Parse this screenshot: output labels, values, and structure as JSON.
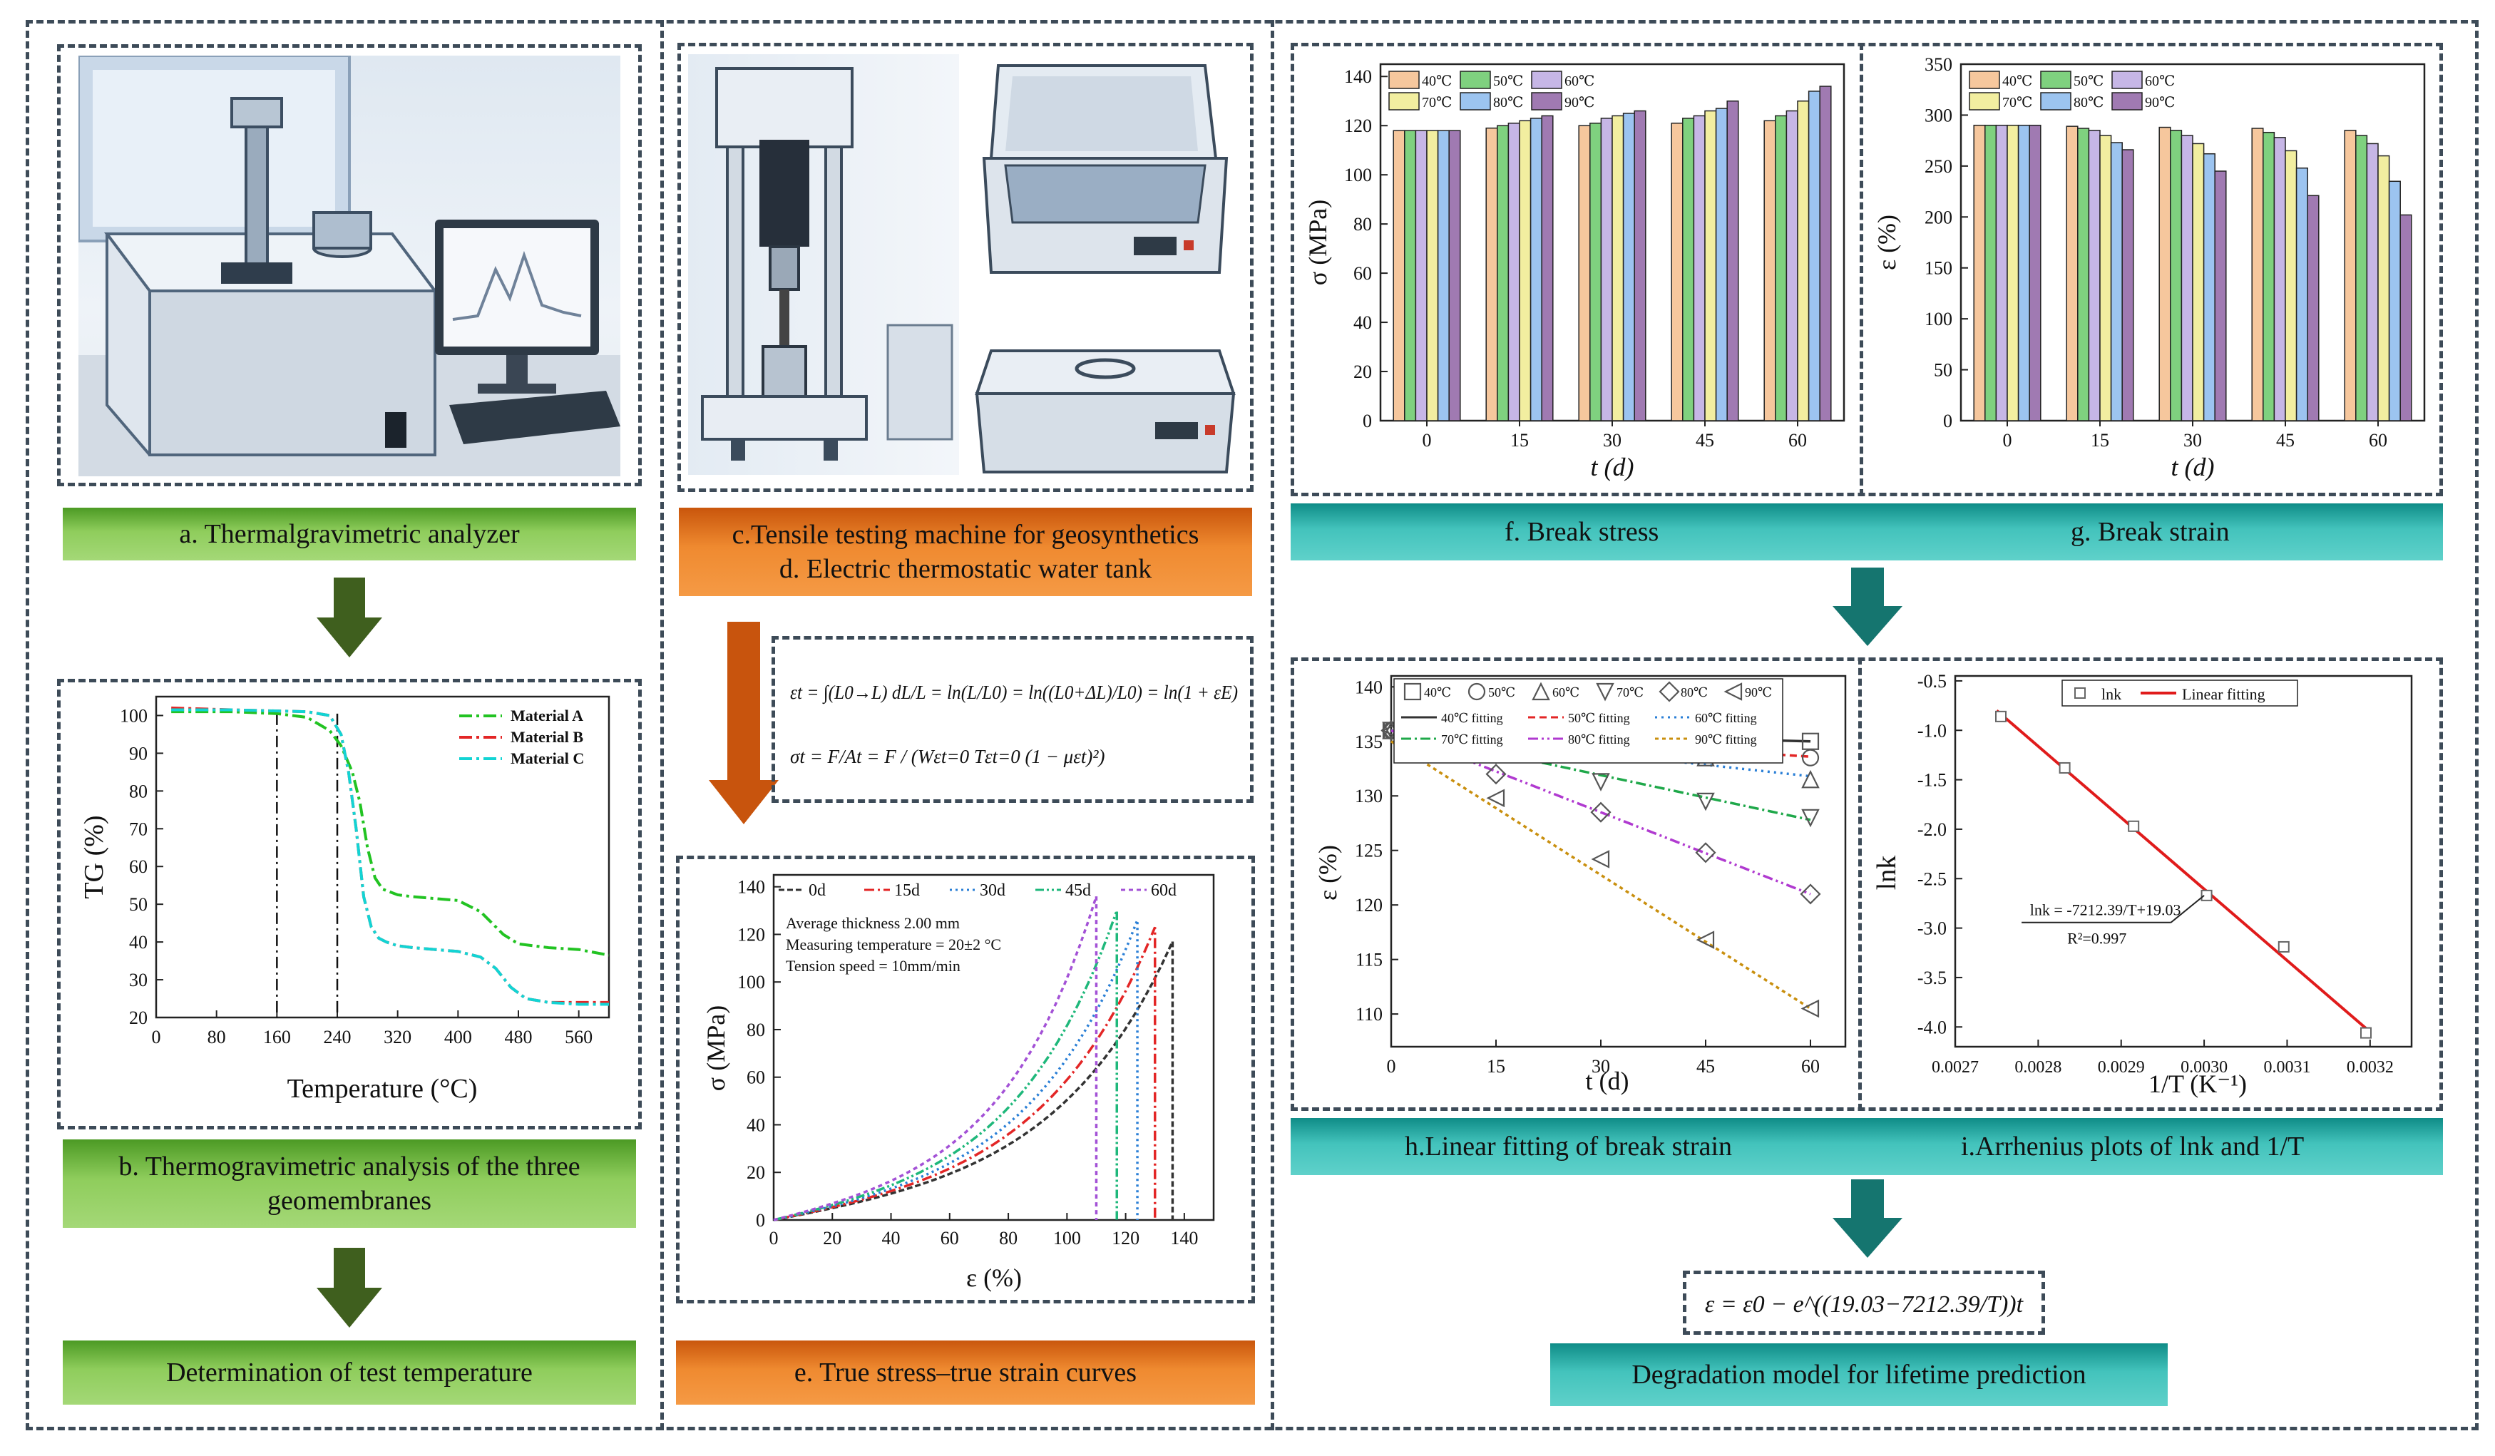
{
  "labels": {
    "a": "a. Thermalgravimetric analyzer",
    "b_line1": "b. Thermogravimetric analysis of  the three",
    "b_line2": "geomembranes",
    "b2": "Determination of test temperature",
    "c_line1": "c.Tensile testing machine for geosynthetics",
    "c_line2": "d. Electric thermostatic water tank",
    "e": "e. True stress–true strain curves",
    "f": "f. Break stress",
    "g": "g. Break strain",
    "h": "h.Linear fitting of break strain",
    "i": "i.Arrhenius plots of lnk and 1/T",
    "model": "Degradation model for lifetime prediction"
  },
  "colors": {
    "green": "#6ab83e",
    "orange": "#e97a22",
    "teal": "#2fb3ac",
    "arrow_green": "#3f5f1e",
    "arrow_orange": "#c8540d",
    "arrow_teal": "#15756f"
  },
  "equations": {
    "strain": "εt = ∫(L0→L) dL/L = ln(L/L0) = ln((L0+ΔL)/L0) = ln(1 + εE)",
    "stress": "σt = F/At = F / (Wεt=0 Tεt=0 (1 − μεt)²)",
    "model": "ε = ε0 − e^((19.03−7212.39/T))t"
  },
  "chart_data": [
    {
      "id": "tg",
      "type": "line",
      "xlabel": "Temperature (°C)",
      "ylabel": "TG (%)",
      "xlim": [
        0,
        600
      ],
      "ylim": [
        20,
        105
      ],
      "xticks": [
        0,
        80,
        160,
        240,
        320,
        400,
        480,
        560
      ],
      "yticks": [
        20,
        30,
        40,
        50,
        60,
        70,
        80,
        90,
        100
      ],
      "vlines": [
        160,
        240
      ],
      "series": [
        {
          "name": "Material A",
          "color": "#22c322",
          "dash": "18 6 4 6",
          "x": [
            20,
            100,
            160,
            200,
            230,
            245,
            260,
            270,
            280,
            290,
            300,
            320,
            340,
            400,
            430,
            460,
            480,
            520,
            560,
            600
          ],
          "y": [
            101,
            101,
            100.5,
            99.5,
            96,
            92,
            85,
            77,
            65,
            57,
            54,
            52.5,
            52,
            51,
            48,
            42,
            39.5,
            38.5,
            38,
            36.5
          ]
        },
        {
          "name": "Material B",
          "color": "#e32626",
          "dash": "18 6 4 6",
          "x": [
            20,
            100,
            200,
            230,
            245,
            255,
            265,
            275,
            285,
            295,
            305,
            320,
            340,
            400,
            430,
            450,
            470,
            490,
            520,
            560,
            600
          ],
          "y": [
            102,
            101.5,
            101,
            100,
            95,
            85,
            70,
            52,
            44,
            41,
            40,
            39,
            38.5,
            37.5,
            36,
            33,
            28,
            25,
            24,
            24,
            24
          ]
        },
        {
          "name": "Material C",
          "color": "#12d4d4",
          "dash": "18 6 4 6",
          "x": [
            20,
            100,
            200,
            230,
            245,
            255,
            265,
            275,
            285,
            295,
            305,
            320,
            340,
            400,
            430,
            450,
            470,
            490,
            520,
            560,
            600
          ],
          "y": [
            101.5,
            101.5,
            101,
            100,
            95,
            85,
            70,
            52,
            44,
            41,
            40,
            39,
            38.5,
            37.5,
            36,
            33,
            28,
            25,
            24,
            23.5,
            23.5
          ]
        }
      ]
    },
    {
      "id": "ss",
      "type": "line",
      "xlabel": "ε (%)",
      "ylabel": "σ (MPa)",
      "xlim": [
        0,
        150
      ],
      "ylim": [
        0,
        145
      ],
      "xticks": [
        0,
        20,
        40,
        60,
        80,
        100,
        120,
        140
      ],
      "yticks": [
        0,
        20,
        40,
        60,
        80,
        100,
        120,
        140
      ],
      "notes": [
        "Average thickness 2.00 mm",
        "Measuring temperature = 20±2 °C",
        "Tension speed = 10mm/min"
      ],
      "series": [
        {
          "name": "0d",
          "color": "#333333",
          "end": 136,
          "peak": 117
        },
        {
          "name": "15d",
          "color": "#e32626",
          "end": 130,
          "peak": 123
        },
        {
          "name": "30d",
          "color": "#2a7fd6",
          "end": 124,
          "peak": 126
        },
        {
          "name": "45d",
          "color": "#1fb87b",
          "end": 117,
          "peak": 130
        },
        {
          "name": "60d",
          "color": "#a351d6",
          "end": 110,
          "peak": 136
        }
      ]
    },
    {
      "id": "stress_bar",
      "type": "bar",
      "xlabel": "t (d)",
      "ylabel": "σ (MPa)",
      "categories": [
        "0",
        "15",
        "30",
        "45",
        "60"
      ],
      "ylim": [
        0,
        145
      ],
      "yticks": [
        0,
        20,
        40,
        60,
        80,
        100,
        120,
        140
      ],
      "series": [
        {
          "name": "40℃",
          "color": "#f6c79d",
          "values": [
            118,
            119,
            120,
            121,
            122
          ]
        },
        {
          "name": "50℃",
          "color": "#7fd17f",
          "values": [
            118,
            120,
            121,
            123,
            124
          ]
        },
        {
          "name": "60℃",
          "color": "#c6b6e6",
          "values": [
            118,
            121,
            123,
            124,
            126
          ]
        },
        {
          "name": "70℃",
          "color": "#f2eea0",
          "values": [
            118,
            122,
            124,
            126,
            130
          ]
        },
        {
          "name": "80℃",
          "color": "#9cc4f0",
          "values": [
            118,
            123,
            125,
            127,
            134
          ]
        },
        {
          "name": "90℃",
          "color": "#a07ab2",
          "values": [
            118,
            124,
            126,
            130,
            136
          ]
        }
      ]
    },
    {
      "id": "strain_bar",
      "type": "bar",
      "xlabel": "t (d)",
      "ylabel": "ε (%)",
      "categories": [
        "0",
        "15",
        "30",
        "45",
        "60"
      ],
      "ylim": [
        0,
        350
      ],
      "yticks": [
        0,
        50,
        100,
        150,
        200,
        250,
        300,
        350
      ],
      "series": [
        {
          "name": "40℃",
          "color": "#f6c79d",
          "values": [
            290,
            289,
            288,
            287,
            285
          ]
        },
        {
          "name": "50℃",
          "color": "#7fd17f",
          "values": [
            290,
            287,
            285,
            283,
            280
          ]
        },
        {
          "name": "60℃",
          "color": "#c6b6e6",
          "values": [
            290,
            285,
            280,
            278,
            272
          ]
        },
        {
          "name": "70℃",
          "color": "#f2eea0",
          "values": [
            290,
            280,
            272,
            265,
            260
          ]
        },
        {
          "name": "80℃",
          "color": "#9cc4f0",
          "values": [
            290,
            273,
            262,
            248,
            235
          ]
        },
        {
          "name": "90℃",
          "color": "#a07ab2",
          "values": [
            290,
            266,
            245,
            221,
            202
          ]
        }
      ]
    },
    {
      "id": "linfit",
      "type": "scatter",
      "xlabel": "t (d)",
      "ylabel": "ε (%)",
      "xlim": [
        0,
        65
      ],
      "ylim": [
        107,
        141
      ],
      "xticks": [
        0,
        15,
        30,
        45,
        60
      ],
      "yticks": [
        110,
        115,
        120,
        125,
        130,
        135,
        140
      ],
      "x": [
        0,
        15,
        30,
        45,
        60
      ],
      "series": [
        {
          "name": "40℃",
          "fit_name": "40℃ fitting",
          "marker": "square",
          "color": "#333333",
          "dash": "",
          "values": [
            136,
            135.7,
            135.5,
            135.3,
            135
          ],
          "fit": [
            136,
            135
          ]
        },
        {
          "name": "50℃",
          "fit_name": "50℃ fitting",
          "marker": "circle",
          "color": "#e32626",
          "dash": "10 6",
          "values": [
            136,
            135.5,
            134.8,
            134.2,
            133.5
          ],
          "fit": [
            136,
            133.6
          ]
        },
        {
          "name": "60℃",
          "fit_name": "60℃ fitting",
          "marker": "triangle-up",
          "color": "#2a7fd6",
          "dash": "3 6",
          "values": [
            136,
            135.3,
            134.0,
            133.5,
            131.5
          ],
          "fit": [
            136,
            131.8
          ]
        },
        {
          "name": "70℃",
          "fit_name": "70℃ fitting",
          "marker": "triangle-down",
          "color": "#1fa84a",
          "dash": "14 5 3 5",
          "values": [
            136,
            133.8,
            131.3,
            129.5,
            128
          ],
          "fit": [
            136,
            127.8
          ]
        },
        {
          "name": "80℃",
          "fit_name": "80℃ fitting",
          "marker": "diamond",
          "color": "#b03ad0",
          "dash": "14 5 3 5 3 5",
          "values": [
            136,
            132,
            128.5,
            124.8,
            121
          ],
          "fit": [
            136,
            121
          ]
        },
        {
          "name": "90℃",
          "fit_name": "90℃ fitting",
          "marker": "triangle-left",
          "color": "#c98f0e",
          "dash": "5 5",
          "values": [
            136,
            129.8,
            124.2,
            116.8,
            110.5
          ],
          "fit": [
            135,
            110.5
          ]
        }
      ]
    },
    {
      "id": "arrhenius",
      "type": "scatter",
      "xlabel": "1/T (K⁻¹)",
      "ylabel": "lnk",
      "xlim": [
        0.0027,
        0.00325
      ],
      "ylim": [
        -4.2,
        -0.45
      ],
      "xticks": [
        "0.0027",
        "0.0028",
        "0.0029",
        "0.0030",
        "0.0031",
        "0.0032"
      ],
      "xtick_values": [
        0.0027,
        0.0028,
        0.0029,
        0.003,
        0.0031,
        0.0032
      ],
      "yticks": [
        "-0.5",
        "-1.0",
        "-1.5",
        "-2.0",
        "-2.5",
        "-3.0",
        "-3.5",
        "-4.0"
      ],
      "ytick_values": [
        -0.5,
        -1.0,
        -1.5,
        -2.0,
        -2.5,
        -3.0,
        -3.5,
        -4.0
      ],
      "legend": [
        "lnk",
        "Linear fitting"
      ],
      "points_x": [
        0.002755,
        0.002832,
        0.002915,
        0.003003,
        0.003096,
        0.003195
      ],
      "points_y": [
        -0.86,
        -1.38,
        -1.97,
        -2.67,
        -3.19,
        -4.06
      ],
      "fit_x": [
        0.00275,
        0.0032
      ],
      "fit_y": [
        -0.8,
        -4.05
      ],
      "annotation": "lnk = -7212.39/T+19.03",
      "r2": "R²=0.997"
    }
  ]
}
